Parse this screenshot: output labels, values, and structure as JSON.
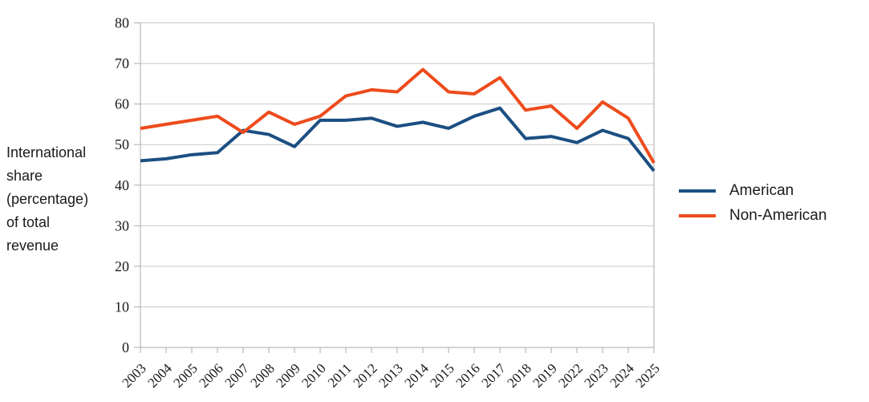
{
  "chart_data": {
    "type": "line",
    "ylabel": "International share (percentage) of total revenue",
    "ylabel_lines": [
      "International",
      "share",
      "(percentage)",
      "of total",
      "revenue"
    ],
    "categories": [
      "2003",
      "2004",
      "2005",
      "2006",
      "2007",
      "2008",
      "2009",
      "2010",
      "2011",
      "2012",
      "2013",
      "2014",
      "2015",
      "2016",
      "2017",
      "2018",
      "2019",
      "2022",
      "2023",
      "2024",
      "2025"
    ],
    "series": [
      {
        "name": "American",
        "color": "#1b4f82",
        "values": [
          46,
          46.5,
          47.5,
          48,
          53.5,
          52.5,
          49.5,
          56,
          56,
          56.5,
          54.5,
          55.5,
          54,
          57,
          59,
          51.5,
          52,
          50.5,
          53.5,
          51.5,
          43.5
        ]
      },
      {
        "name": "Non-American",
        "color": "#ee4b1c",
        "values": [
          54,
          55,
          56,
          57,
          53,
          58,
          55,
          57,
          62,
          63.5,
          63,
          68.5,
          63,
          62.5,
          66.5,
          58.5,
          59.5,
          54,
          60.5,
          56.5,
          45.5
        ]
      }
    ],
    "ylim": [
      0,
      80
    ],
    "ytick_step": 10,
    "yticks": [
      0,
      10,
      20,
      30,
      40,
      50,
      60,
      70,
      80
    ],
    "grid": true,
    "legend_position": "right"
  },
  "colors": {
    "grid": "#c9c9c9",
    "axis": "#ababab",
    "tick": "#ababab",
    "text": "#1a1a1a",
    "background": "#ffffff"
  }
}
